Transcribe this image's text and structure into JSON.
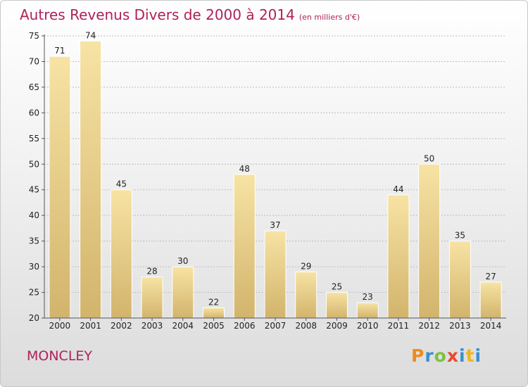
{
  "header": {
    "title": "Autres Revenus Divers de 2000 à 2014",
    "unit": "(en milliers d'€)"
  },
  "footer": {
    "town": "MONCLEY",
    "logo": "Proxiti"
  },
  "chart_data": {
    "type": "bar",
    "title": "Autres Revenus Divers de 2000 à 2014",
    "subtitle": "(en milliers d'€)",
    "categories": [
      "2000",
      "2001",
      "2002",
      "2003",
      "2004",
      "2005",
      "2006",
      "2007",
      "2008",
      "2009",
      "2010",
      "2011",
      "2012",
      "2013",
      "2014"
    ],
    "values": [
      71,
      74,
      45,
      28,
      30,
      22,
      48,
      37,
      29,
      25,
      23,
      44,
      50,
      35,
      27
    ],
    "ylim": [
      20,
      75
    ],
    "yticks": [
      20,
      25,
      30,
      35,
      40,
      45,
      50,
      55,
      60,
      65,
      70,
      75
    ],
    "grid": true,
    "colors": {
      "bar_light": "#f7e3a4",
      "bar_dark": "#d2b46c",
      "grid": "#bdbdbd",
      "title": "#b0205a"
    }
  }
}
